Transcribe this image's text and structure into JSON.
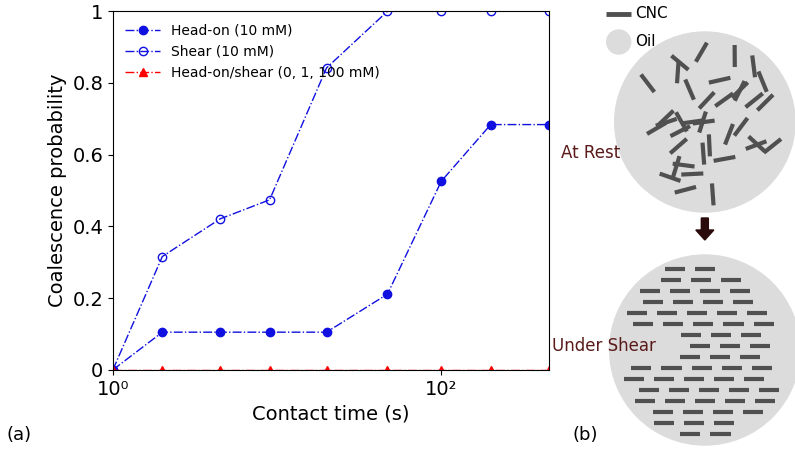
{
  "chart_data": {
    "type": "line",
    "log": "x",
    "panel_label": "(a)",
    "xlabel": "Contact time (s)",
    "ylabel": "Coalescence probability",
    "x": [
      1,
      2,
      4.5,
      9,
      20,
      47,
      100,
      200,
      450
    ],
    "xlim": [
      1,
      450
    ],
    "xticks": [
      {
        "value": 1,
        "label": "10⁰"
      },
      {
        "value": 100,
        "label": "10²"
      }
    ],
    "ylim": [
      0,
      1
    ],
    "yticks": [
      0,
      0.2,
      0.4,
      0.6,
      0.8,
      1
    ],
    "legend": "upper left",
    "line_style": "dashdot",
    "series": [
      {
        "name": "Head-on (10 mM)",
        "color": "#1010e0",
        "marker": "circle",
        "values": [
          0,
          0.105,
          0.105,
          0.105,
          0.105,
          0.211,
          0.526,
          0.684,
          0.684
        ]
      },
      {
        "name": "Shear (10 mM)",
        "color": "#1010e0",
        "marker": "open_circle",
        "values": [
          0,
          0.316,
          0.421,
          0.474,
          0.842,
          1,
          1,
          1,
          1
        ]
      },
      {
        "name": "Head-on/shear (0, 1, 100 mM)",
        "color": "#ff0000",
        "marker": "triangle",
        "values": [
          0,
          0,
          0,
          0,
          0,
          0,
          0,
          0,
          0
        ]
      }
    ]
  },
  "diagram": {
    "panel_label": "(b)",
    "legend": {
      "rod": "CNC",
      "particle": "Oil"
    },
    "states": [
      "At Rest",
      "Under Shear"
    ]
  }
}
